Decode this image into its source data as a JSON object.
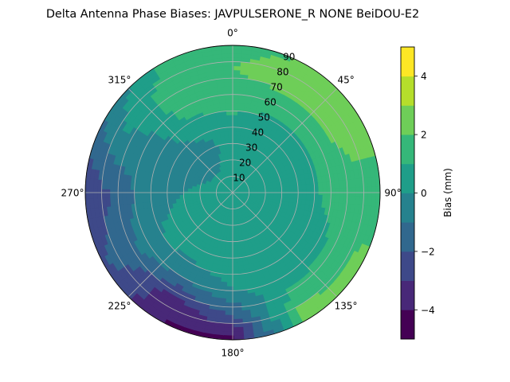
{
  "chart_data": {
    "type": "heatmap",
    "projection": "polar",
    "title": "Delta Antenna Phase Biases: JAVPULSERONE_R  NONE BeiDOU-E2",
    "theta_ticks": [
      "0°",
      "45°",
      "90°",
      "135°",
      "180°",
      "225°",
      "270°",
      "315°"
    ],
    "theta_tick_degrees": [
      0,
      45,
      90,
      135,
      180,
      225,
      270,
      315
    ],
    "theta_direction": "clockwise",
    "theta_zero_location": "top",
    "radial_ticks": [
      "10",
      "20",
      "30",
      "40",
      "50",
      "60",
      "70",
      "80",
      "90"
    ],
    "radial_tick_values": [
      10,
      20,
      30,
      40,
      50,
      60,
      70,
      80,
      90
    ],
    "rlim": [
      0,
      90
    ],
    "grid": true,
    "colorbar": {
      "label": "Bias (mm)",
      "ticks": [
        "4",
        "2",
        "0",
        "−2",
        "−4"
      ],
      "tick_values": [
        4,
        2,
        0,
        -2,
        -4
      ],
      "range": [
        -5,
        5
      ],
      "levels": [
        -5,
        -4.5,
        -4,
        -3.5,
        -3,
        -2.5,
        -2,
        -1.5,
        -1,
        -0.5,
        0,
        0.5,
        1,
        1.5,
        2,
        2.5,
        3,
        3.5,
        4,
        4.5,
        5
      ],
      "colormap": "viridis"
    },
    "bias_grid": {
      "theta_degrees": [
        0,
        30,
        60,
        90,
        120,
        150,
        180,
        210,
        240,
        270,
        300,
        330
      ],
      "radius": [
        0,
        15,
        30,
        45,
        60,
        75,
        90
      ],
      "values": [
        [
          0.2,
          0.3,
          0.6,
          0.9,
          1.5,
          2.0,
          1.8
        ],
        [
          0.2,
          0.0,
          0.0,
          0.5,
          1.5,
          2.5,
          2.0
        ],
        [
          0.2,
          0.0,
          0.2,
          0.5,
          1.5,
          2.5,
          3.0
        ],
        [
          0.2,
          0.3,
          0.5,
          0.8,
          1.2,
          1.5,
          1.0
        ],
        [
          0.2,
          0.5,
          0.8,
          0.6,
          0.8,
          1.5,
          2.5
        ],
        [
          0.2,
          0.5,
          0.6,
          0.5,
          0.5,
          1.5,
          2.8
        ],
        [
          0.2,
          0.5,
          0.5,
          0.5,
          0.0,
          -2.0,
          -4.5
        ],
        [
          0.2,
          0.8,
          0.5,
          0.3,
          -1.0,
          -3.5,
          -4.0
        ],
        [
          0.2,
          0.5,
          0.5,
          0.2,
          -0.5,
          -1.5,
          -2.0
        ],
        [
          0.2,
          0.3,
          0.0,
          -0.5,
          -1.0,
          -2.0,
          -3.0
        ],
        [
          0.2,
          0.0,
          -0.5,
          -0.5,
          -0.5,
          0.0,
          -1.0
        ],
        [
          0.2,
          0.0,
          -0.5,
          0.5,
          1.5,
          1.5,
          1.0
        ]
      ]
    }
  }
}
